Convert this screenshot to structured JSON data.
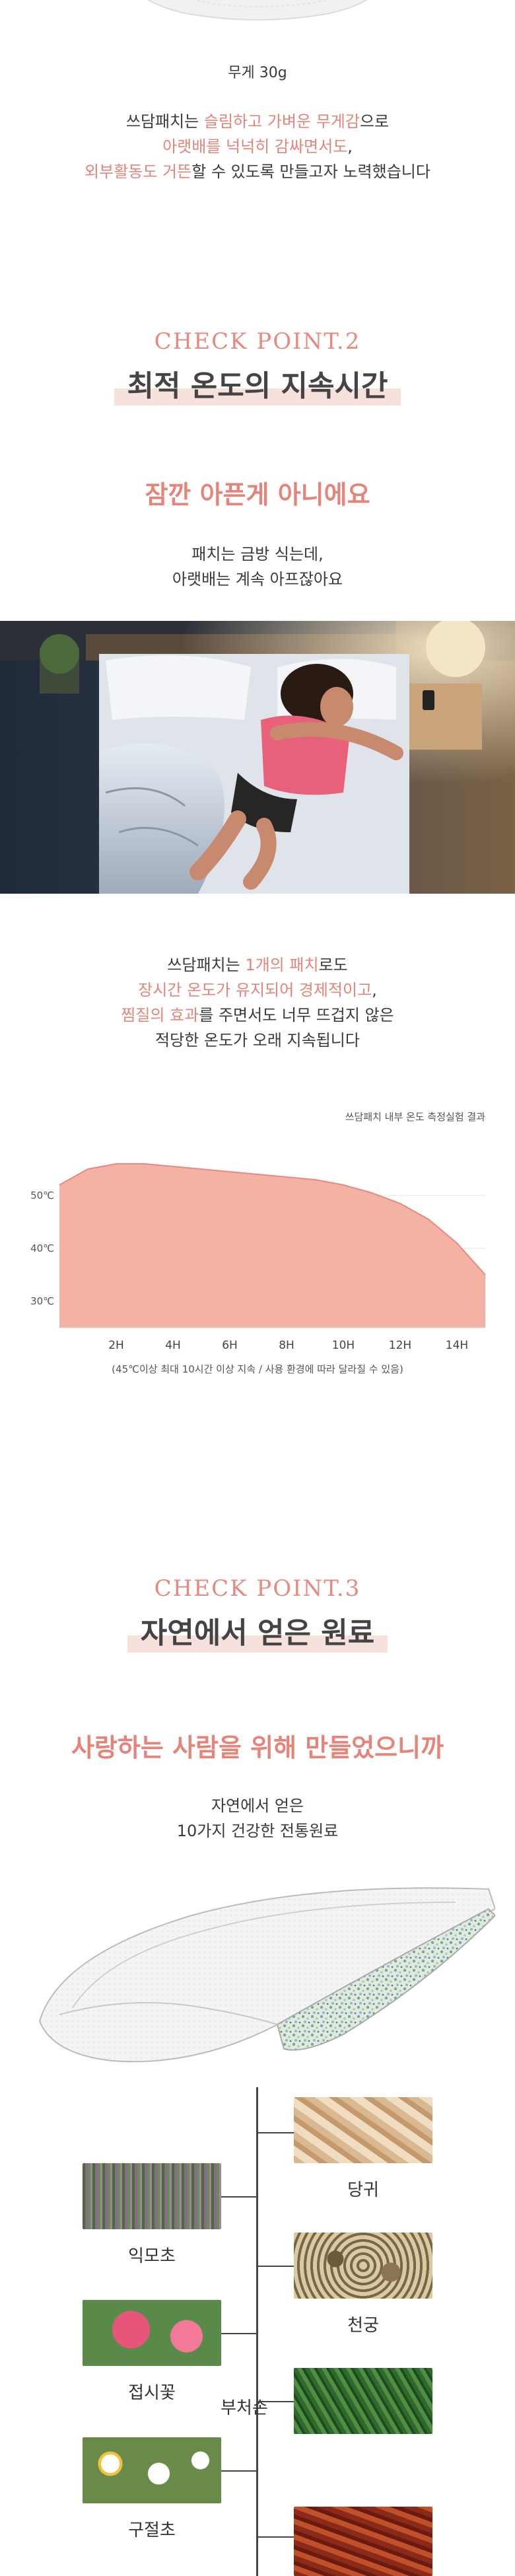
{
  "section1": {
    "weight_caption": "무게 30g",
    "lines": [
      [
        {
          "t": "쓰담패치는 ",
          "pink": false
        },
        {
          "t": "슬림하고 가벼운 무게감",
          "pink": true
        },
        {
          "t": "으로",
          "pink": false
        }
      ],
      [
        {
          "t": "아랫배를 넉넉히 감싸면서도",
          "pink": true
        },
        {
          "t": ",",
          "pink": false
        }
      ],
      [
        {
          "t": "외부활동도 거뜬",
          "pink": true
        },
        {
          "t": "할 수 있도록 만들고자 노력했습니다",
          "pink": false
        }
      ]
    ]
  },
  "section2": {
    "checkpoint": "CHECK POINT.2",
    "title": "최적 온도의 지속시간",
    "subtitle": "잠깐 아픈게 아니에요",
    "intro": [
      "패치는 금방 식는데,",
      "아랫배는 계속 아프잖아요"
    ],
    "lines": [
      [
        {
          "t": "쓰담패치는 ",
          "pink": false
        },
        {
          "t": "1개의 패치",
          "pink": true
        },
        {
          "t": "로도",
          "pink": false
        }
      ],
      [
        {
          "t": "장시간 온도가 유지되어 경제적이고",
          "pink": true
        },
        {
          "t": ",",
          "pink": false
        }
      ],
      [
        {
          "t": "찜질의 효과",
          "pink": true
        },
        {
          "t": "를 주면서도 너무 뜨겁지 않은",
          "pink": false
        }
      ],
      [
        {
          "t": "적당한 온도가 오래 지속됩니다",
          "pink": false
        }
      ]
    ]
  },
  "chart_data": {
    "type": "area",
    "title": "쓰담패치 내부 온도 측정실험 결과",
    "x_ticks": [
      "2H",
      "4H",
      "6H",
      "8H",
      "10H",
      "12H",
      "14H"
    ],
    "y_ticks": [
      "50℃",
      "40℃",
      "30℃"
    ],
    "x": [
      0,
      1,
      2,
      3,
      4,
      5,
      6,
      7,
      8,
      9,
      10,
      11,
      12,
      13,
      14,
      15
    ],
    "y": [
      52,
      55,
      56,
      56,
      55.5,
      55,
      54.5,
      54,
      53.5,
      53,
      52,
      50.5,
      48.5,
      45.5,
      41,
      35
    ],
    "ylim": [
      25,
      60
    ],
    "xlim": [
      0,
      15
    ],
    "fill_color": "#f2a495",
    "footnote": "(45℃이상 최대 10시간 이상 지속 / 사용 환경에 따라 달라질 수 있음)"
  },
  "section3": {
    "checkpoint": "CHECK POINT.3",
    "title": "자연에서 얻은 원료",
    "subtitle": "사랑하는 사람을 위해 만들었으니까",
    "intro": [
      "자연에서 얻은",
      "10가지 건강한 전통원료"
    ],
    "herbs_right": [
      "당귀",
      "천궁",
      "부처손"
    ],
    "herbs_left": [
      "익모초",
      "접시꽃",
      "구절초"
    ]
  },
  "colors": {
    "accent": "#e5857a",
    "heading_bg": "#f7e1dc"
  }
}
